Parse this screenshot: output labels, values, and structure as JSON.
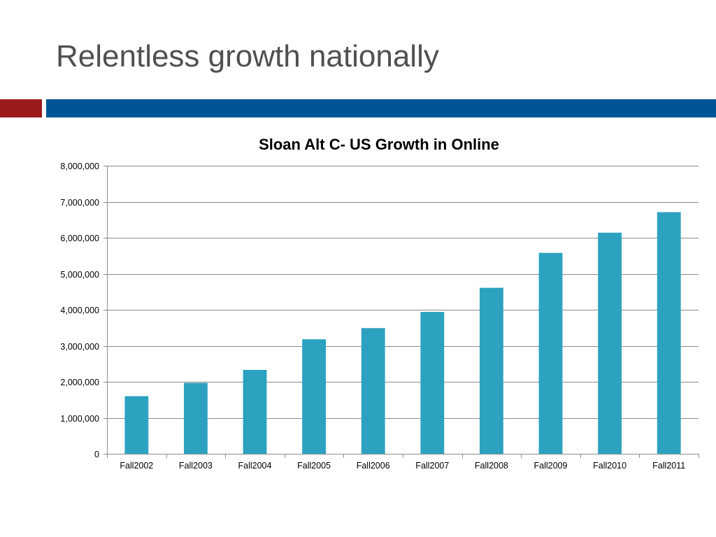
{
  "slide": {
    "title": "Relentless growth nationally",
    "colors": {
      "title_text": "#505050",
      "band_red": "#9b1a1a",
      "band_blue": "#005496"
    }
  },
  "chart_data": {
    "type": "bar",
    "title": "Sloan Alt C- US Growth in Online",
    "xlabel": "",
    "ylabel": "",
    "categories": [
      "Fall2002",
      "Fall2003",
      "Fall2004",
      "Fall2005",
      "Fall2006",
      "Fall2007",
      "Fall2008",
      "Fall2009",
      "Fall2010",
      "Fall2011"
    ],
    "values": [
      1600000,
      1970000,
      2330000,
      3180000,
      3490000,
      3940000,
      4610000,
      5580000,
      6140000,
      6710000
    ],
    "ylim": [
      0,
      8000000
    ],
    "yticks": [
      0,
      1000000,
      2000000,
      3000000,
      4000000,
      5000000,
      6000000,
      7000000,
      8000000
    ],
    "ytick_labels": [
      "0",
      "1,000,000",
      "2,000,000",
      "3,000,000",
      "4,000,000",
      "5,000,000",
      "6,000,000",
      "7,000,000",
      "8,000,000"
    ],
    "grid": true,
    "legend": "none",
    "bar_color": "#2ca2c0",
    "grid_color": "#8c8c8c"
  }
}
